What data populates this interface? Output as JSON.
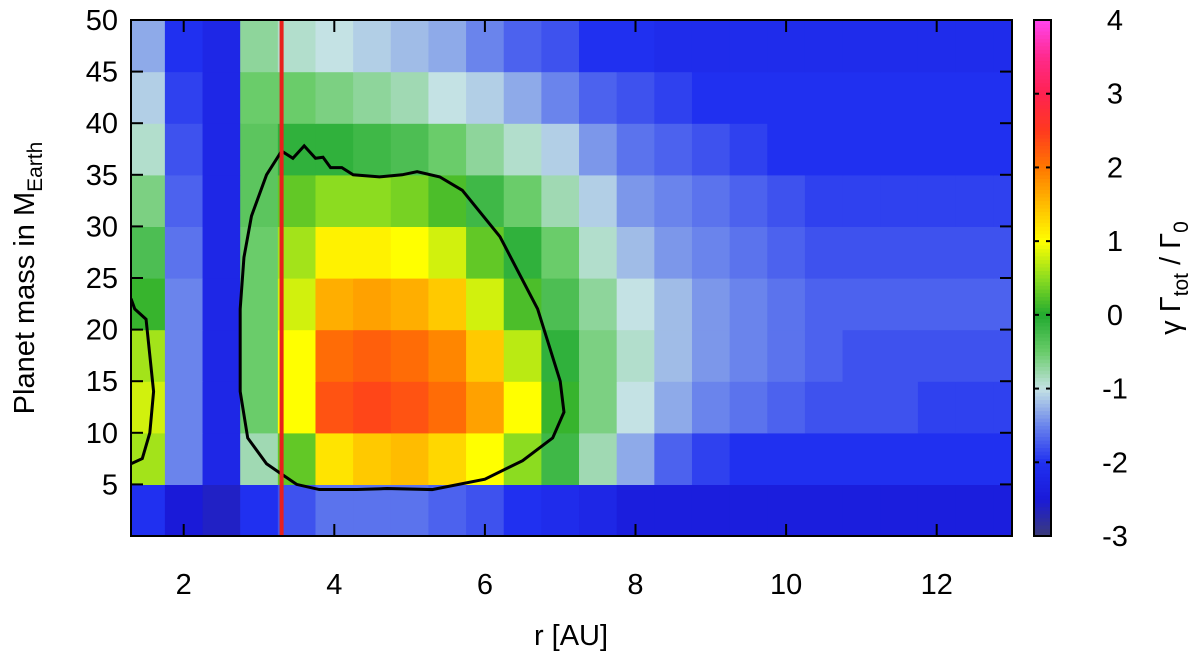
{
  "chart_data": {
    "type": "heatmap",
    "x_label": "r [AU]",
    "y_label_parts": [
      "Planet mass in M",
      "Earth"
    ],
    "colorbar_label_parts": [
      "γ Γ",
      "tot",
      " / Γ",
      "0"
    ],
    "xlim": [
      1.3,
      13
    ],
    "xticks": [
      2,
      4,
      6,
      8,
      10,
      12
    ],
    "ylim": [
      0,
      50
    ],
    "yticks": [
      5,
      10,
      15,
      20,
      25,
      30,
      35,
      40,
      45,
      50
    ],
    "zlim": [
      -3,
      4
    ],
    "zticks": [
      -3,
      -2,
      -1,
      0,
      1,
      2,
      3,
      4
    ],
    "colorscale": {
      "values": [
        -3,
        -2.5,
        -2,
        -1.5,
        -1,
        -0.5,
        0,
        0.5,
        1,
        1.5,
        2,
        2.5,
        3,
        3.5,
        4
      ],
      "colors": [
        "#3c3c78",
        "#1a1ad8",
        "#2030f0",
        "#6a84ec",
        "#c4e2e4",
        "#6acc6a",
        "#22aa30",
        "#8cdc20",
        "#ffff00",
        "#ffbc00",
        "#ff7800",
        "#ff3a1e",
        "#ff2250",
        "#ff2a8c",
        "#ff44ee"
      ]
    },
    "x": [
      1.5,
      2.0,
      2.5,
      3.0,
      3.5,
      4.0,
      4.5,
      5.0,
      5.5,
      6.0,
      6.5,
      7.0,
      7.5,
      8.0,
      8.5,
      9.0,
      9.5,
      10.0,
      10.5,
      11.0,
      11.5,
      12.0,
      12.5,
      13.0
    ],
    "y": [
      2.5,
      7.5,
      12.5,
      17.5,
      22.5,
      27.5,
      32.5,
      37.5,
      42.5,
      47.5
    ],
    "z": [
      [
        -2.0,
        -2.5,
        -2.6,
        -2.0,
        -1.8,
        -1.6,
        -1.6,
        -1.6,
        -1.7,
        -1.8,
        -2.0,
        -2.1,
        -2.2,
        -2.4,
        -2.4,
        -2.4,
        -2.4,
        -2.4,
        -2.4,
        -2.4,
        -2.4,
        -2.4,
        -2.4,
        -2.4
      ],
      [
        0.6,
        -1.5,
        -2.2,
        -0.8,
        0.3,
        1.2,
        1.4,
        1.5,
        1.3,
        1.0,
        0.5,
        -0.2,
        -0.8,
        -1.3,
        -1.7,
        -1.9,
        -2.0,
        -2.0,
        -2.0,
        -2.0,
        -2.0,
        -2.0,
        -2.0,
        -2.0
      ],
      [
        0.8,
        -1.5,
        -2.2,
        -0.5,
        1.0,
        2.3,
        2.4,
        2.3,
        2.1,
        1.7,
        1.0,
        0.1,
        -0.6,
        -1.0,
        -1.3,
        -1.5,
        -1.6,
        -1.7,
        -1.8,
        -1.8,
        -1.8,
        -1.9,
        -1.9,
        -1.9
      ],
      [
        0.6,
        -1.5,
        -2.2,
        -0.5,
        1.0,
        2.1,
        2.2,
        2.1,
        1.9,
        1.4,
        0.7,
        -0.1,
        -0.6,
        -0.9,
        -1.2,
        -1.4,
        -1.5,
        -1.6,
        -1.7,
        -1.8,
        -1.8,
        -1.8,
        -1.8,
        -1.8
      ],
      [
        0.1,
        -1.5,
        -2.2,
        -0.5,
        0.8,
        1.6,
        1.7,
        1.6,
        1.4,
        0.8,
        0.2,
        -0.3,
        -0.7,
        -1.0,
        -1.2,
        -1.4,
        -1.5,
        -1.6,
        -1.7,
        -1.7,
        -1.7,
        -1.7,
        -1.7,
        -1.7
      ],
      [
        -0.3,
        -1.6,
        -2.2,
        -0.5,
        0.6,
        1.1,
        1.1,
        1.0,
        0.8,
        0.3,
        -0.1,
        -0.5,
        -0.9,
        -1.2,
        -1.4,
        -1.5,
        -1.6,
        -1.7,
        -1.8,
        -1.8,
        -1.8,
        -1.8,
        -1.8,
        -1.8
      ],
      [
        -0.6,
        -1.7,
        -2.2,
        -0.4,
        0.3,
        0.5,
        0.5,
        0.4,
        0.2,
        -0.2,
        -0.5,
        -0.8,
        -1.1,
        -1.4,
        -1.5,
        -1.6,
        -1.7,
        -1.8,
        -1.9,
        -1.9,
        -1.9,
        -1.9,
        -1.9,
        -1.9
      ],
      [
        -0.9,
        -1.8,
        -2.2,
        -0.4,
        -0.1,
        -0.1,
        -0.2,
        -0.3,
        -0.5,
        -0.7,
        -0.9,
        -1.1,
        -1.4,
        -1.6,
        -1.7,
        -1.8,
        -1.9,
        -2.0,
        -2.0,
        -2.0,
        -2.0,
        -2.0,
        -2.0,
        -2.0
      ],
      [
        -1.1,
        -1.9,
        -2.2,
        -0.5,
        -0.5,
        -0.6,
        -0.7,
        -0.8,
        -1.0,
        -1.1,
        -1.3,
        -1.5,
        -1.7,
        -1.8,
        -1.9,
        -2.0,
        -2.0,
        -2.0,
        -2.0,
        -2.0,
        -2.0,
        -2.0,
        -2.0,
        -2.0
      ],
      [
        -1.3,
        -2.0,
        -2.2,
        -0.7,
        -0.9,
        -1.0,
        -1.1,
        -1.2,
        -1.3,
        -1.5,
        -1.7,
        -1.8,
        -2.0,
        -2.0,
        -2.1,
        -2.1,
        -2.1,
        -2.1,
        -2.1,
        -2.1,
        -2.1,
        -2.1,
        -2.1,
        -2.1
      ]
    ],
    "contours": [
      {
        "x": [
          1.3,
          1.35,
          1.5,
          1.6,
          1.55,
          1.45,
          1.3
        ],
        "y": [
          23,
          22,
          21,
          14,
          10,
          7.5,
          7
        ]
      },
      {
        "x": [
          3.3,
          3.45,
          3.6,
          3.75,
          3.85,
          3.95,
          4.1,
          4.25,
          4.6,
          4.9,
          5.1,
          5.4,
          5.7,
          6.2,
          6.7,
          7.0,
          7.05,
          6.9,
          6.5,
          6.0,
          5.3,
          4.7,
          4.3,
          3.8,
          3.5,
          3.3,
          3.1,
          2.85,
          2.75,
          2.75,
          2.8,
          2.9,
          3.1,
          3.3
        ],
        "y": [
          37.3,
          36.6,
          37.8,
          36.6,
          36.7,
          35.7,
          35.7,
          35,
          34.8,
          35,
          35.3,
          34.8,
          33.5,
          29,
          22,
          15,
          12,
          9.5,
          7.3,
          5.5,
          4.5,
          4.6,
          4.5,
          4.5,
          5,
          6,
          7,
          9.5,
          14,
          22,
          27,
          31,
          35,
          37.3
        ]
      }
    ],
    "contour_color": "#000000",
    "vline": {
      "x": 3.3,
      "color": "#e8201c"
    }
  }
}
